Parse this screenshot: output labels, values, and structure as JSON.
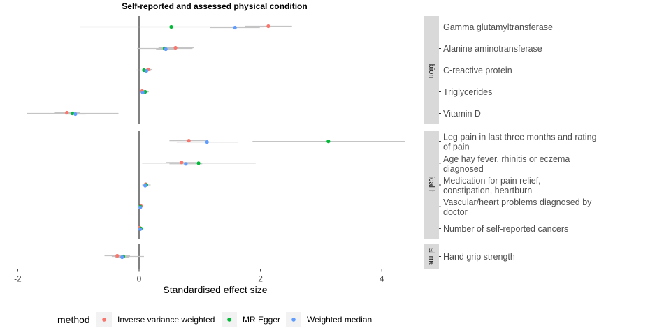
{
  "chart_data": {
    "type": "forest",
    "title": "Self-reported and assessed physical condition",
    "xlabel": "Standardised effect size",
    "xlim": [
      -2.15,
      4.65
    ],
    "xticks": [
      -2,
      0,
      2,
      4
    ],
    "legend": {
      "title": "method",
      "placement": "bottom",
      "entries": [
        {
          "name": "Inverse variance weighted",
          "color": "#F8766D"
        },
        {
          "name": "MR Egger",
          "color": "#00BA38"
        },
        {
          "name": "Weighted median",
          "color": "#619CFF"
        }
      ]
    },
    "panels": [
      {
        "strip": "Blood biomarker",
        "rows": [
          {
            "label": "Gamma glutamyltransferase",
            "estimates": [
              {
                "method": "Inverse variance weighted",
                "value": 2.13,
                "ci": [
                  1.75,
                  2.52
                ]
              },
              {
                "method": "MR Egger",
                "value": 0.53,
                "ci": [
                  -0.97,
                  2.05
                ]
              },
              {
                "method": "Weighted median",
                "value": 1.58,
                "ci": [
                  1.17,
                  1.99
                ]
              }
            ]
          },
          {
            "label": "Alanine aminotransferase",
            "estimates": [
              {
                "method": "Inverse variance weighted",
                "value": 0.6,
                "ci": [
                  0.32,
                  0.9
                ]
              },
              {
                "method": "MR Egger",
                "value": 0.42,
                "ci": [
                  -0.03,
                  0.88
                ]
              },
              {
                "method": "Weighted median",
                "value": 0.44,
                "ci": [
                  0.28,
                  0.6
                ]
              }
            ]
          },
          {
            "label": "C-reactive protein",
            "estimates": [
              {
                "method": "Inverse variance weighted",
                "value": 0.15,
                "ci": [
                  0.06,
                  0.22
                ]
              },
              {
                "method": "MR Egger",
                "value": 0.08,
                "ci": [
                  -0.05,
                  0.21
                ]
              },
              {
                "method": "Weighted median",
                "value": 0.12,
                "ci": [
                  0.05,
                  0.19
                ]
              }
            ]
          },
          {
            "label": "Triglycerides",
            "estimates": [
              {
                "method": "Inverse variance weighted",
                "value": 0.05,
                "ci": [
                  0.02,
                  0.08
                ]
              },
              {
                "method": "MR Egger",
                "value": 0.1,
                "ci": [
                  0.04,
                  0.16
                ]
              },
              {
                "method": "Weighted median",
                "value": 0.06,
                "ci": [
                  0.02,
                  0.1
                ]
              }
            ]
          },
          {
            "label": "Vitamin D",
            "estimates": [
              {
                "method": "Inverse variance weighted",
                "value": -1.19,
                "ci": [
                  -1.4,
                  -0.98
                ]
              },
              {
                "method": "MR Egger",
                "value": -1.1,
                "ci": [
                  -1.85,
                  -0.34
                ]
              },
              {
                "method": "Weighted median",
                "value": -1.05,
                "ci": [
                  -1.22,
                  -0.88
                ]
              }
            ]
          }
        ]
      },
      {
        "strip": "Physical health",
        "rows": [
          {
            "label": "Leg pain in last three months and rating of pain",
            "estimates": [
              {
                "method": "Inverse variance weighted",
                "value": 0.82,
                "ci": [
                  0.5,
                  1.14
                ]
              },
              {
                "method": "MR Egger",
                "value": 3.12,
                "ci": [
                  1.87,
                  4.38
                ]
              },
              {
                "method": "Weighted median",
                "value": 1.12,
                "ci": [
                  0.62,
                  1.63
                ]
              }
            ]
          },
          {
            "label": "Age hay fever, rhinitis or eczema diagnosed",
            "estimates": [
              {
                "method": "Inverse variance weighted",
                "value": 0.7,
                "ci": [
                  0.45,
                  0.95
                ]
              },
              {
                "method": "MR Egger",
                "value": 0.98,
                "ci": [
                  0.05,
                  1.92
                ]
              },
              {
                "method": "Weighted median",
                "value": 0.77,
                "ci": [
                  0.5,
                  1.04
                ]
              }
            ]
          },
          {
            "label": "Medication for pain relief, constipation, heartburn",
            "estimates": [
              {
                "method": "Inverse variance weighted",
                "value": 0.11,
                "ci": [
                  0.07,
                  0.15
                ]
              },
              {
                "method": "MR Egger",
                "value": 0.12,
                "ci": [
                  0.05,
                  0.19
                ]
              },
              {
                "method": "Weighted median",
                "value": 0.1,
                "ci": [
                  0.06,
                  0.14
                ]
              }
            ]
          },
          {
            "label": "Vascular/heart problems diagnosed by doctor",
            "estimates": [
              {
                "method": "Inverse variance weighted",
                "value": 0.03,
                "ci": [
                  0.0,
                  0.06
                ]
              },
              {
                "method": "MR Egger",
                "value": 0.02,
                "ci": [
                  -0.02,
                  0.06
                ]
              },
              {
                "method": "Weighted median",
                "value": 0.02,
                "ci": [
                  -0.01,
                  0.05
                ]
              }
            ]
          },
          {
            "label": "Number of self-reported cancers",
            "estimates": [
              {
                "method": "Inverse variance weighted",
                "value": 0.01,
                "ci": [
                  -0.02,
                  0.04
                ]
              },
              {
                "method": "MR Egger",
                "value": 0.03,
                "ci": [
                  -0.01,
                  0.07
                ]
              },
              {
                "method": "Weighted median",
                "value": 0.02,
                "ci": [
                  -0.01,
                  0.05
                ]
              }
            ]
          }
        ]
      },
      {
        "strip": "ical mea",
        "rows": [
          {
            "label": "Hand grip strength",
            "estimates": [
              {
                "method": "Inverse variance weighted",
                "value": -0.36,
                "ci": [
                  -0.57,
                  -0.15
                ]
              },
              {
                "method": "MR Egger",
                "value": -0.26,
                "ci": [
                  -0.45,
                  0.08
                ]
              },
              {
                "method": "Weighted median",
                "value": -0.28,
                "ci": [
                  -0.4,
                  -0.16
                ]
              }
            ]
          }
        ]
      }
    ]
  }
}
